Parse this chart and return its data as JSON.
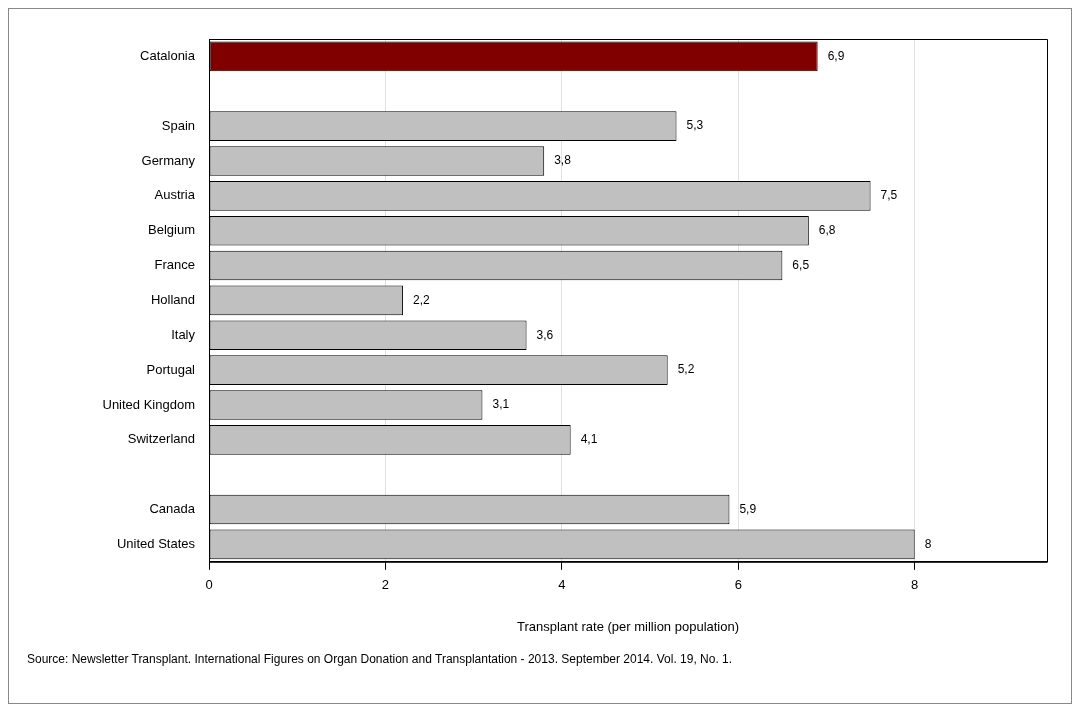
{
  "chart_data": {
    "type": "bar",
    "orientation": "horizontal",
    "xlabel": "Transplant rate (per million population)",
    "categories": [
      "Catalonia",
      null,
      "Spain",
      "Germany",
      "Austria",
      "Belgium",
      "France",
      "Holland",
      "Italy",
      "Portugal",
      "United Kingdom",
      "Switzerland",
      null,
      "Canada",
      "United States"
    ],
    "values": [
      6.9,
      null,
      5.3,
      3.8,
      7.5,
      6.8,
      6.5,
      2.2,
      3.6,
      5.2,
      3.1,
      4.1,
      null,
      5.9,
      8
    ],
    "colors": [
      "#800000",
      null,
      "#c0c0c0",
      "#c0c0c0",
      "#c0c0c0",
      "#c0c0c0",
      "#c0c0c0",
      "#c0c0c0",
      "#c0c0c0",
      "#c0c0c0",
      "#c0c0c0",
      "#c0c0c0",
      null,
      "#c0c0c0",
      "#c0c0c0"
    ],
    "value_labels": [
      "6,9",
      null,
      "5,3",
      "3,8",
      "7,5",
      "6,8",
      "6,5",
      "2,2",
      "3,6",
      "5,2",
      "3,1",
      "4,1",
      null,
      "5,9",
      "8"
    ],
    "xlim": [
      0,
      9.5
    ],
    "xticks": [
      0,
      2,
      4,
      6,
      8
    ],
    "grid": "x",
    "legend": false,
    "annotations": [
      "Source:  Newsletter Transplant. International Figures on Organ Donation and Transplantation - 2013. September 2014. Vol. 19, No. 1."
    ]
  }
}
